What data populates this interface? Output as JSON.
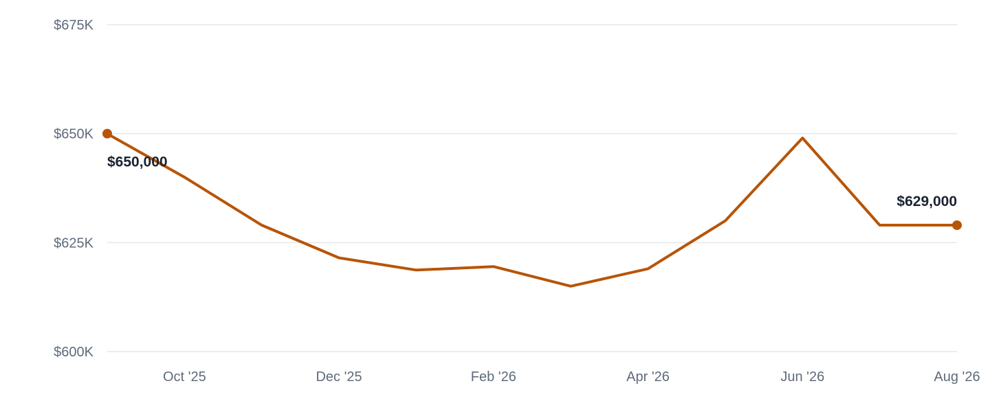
{
  "chart_data": {
    "type": "line",
    "title": "",
    "xlabel": "",
    "ylabel": "",
    "ylim": [
      600000,
      675000
    ],
    "yticks": [
      {
        "value": 600000,
        "label": "$600K"
      },
      {
        "value": 625000,
        "label": "$625K"
      },
      {
        "value": 650000,
        "label": "$650K"
      },
      {
        "value": 675000,
        "label": "$675K"
      }
    ],
    "xlim": [
      "2025-09",
      "2026-08"
    ],
    "xticks": [
      {
        "x": "2025-10",
        "label": "Oct '25"
      },
      {
        "x": "2025-12",
        "label": "Dec '25"
      },
      {
        "x": "2026-02",
        "label": "Feb '26"
      },
      {
        "x": "2026-04",
        "label": "Apr '26"
      },
      {
        "x": "2026-06",
        "label": "Jun '26"
      },
      {
        "x": "2026-08",
        "label": "Aug '26"
      }
    ],
    "grid": true,
    "series": [
      {
        "color": "#b85407",
        "points": [
          {
            "x": "2025-09",
            "y": 650000
          },
          {
            "x": "2025-10",
            "y": 640000
          },
          {
            "x": "2025-11",
            "y": 629000
          },
          {
            "x": "2025-12",
            "y": 621500
          },
          {
            "x": "2026-01",
            "y": 618700
          },
          {
            "x": "2026-02",
            "y": 619500
          },
          {
            "x": "2026-03",
            "y": 615000
          },
          {
            "x": "2026-04",
            "y": 619000
          },
          {
            "x": "2026-05",
            "y": 630000
          },
          {
            "x": "2026-06",
            "y": 649000
          },
          {
            "x": "2026-07",
            "y": 629000
          },
          {
            "x": "2026-08",
            "y": 629000
          }
        ]
      }
    ],
    "data_labels": [
      {
        "x": "2025-09",
        "y": 650000,
        "label": "$650,000"
      },
      {
        "x": "2026-08",
        "y": 629000,
        "label": "$629,000"
      }
    ]
  }
}
